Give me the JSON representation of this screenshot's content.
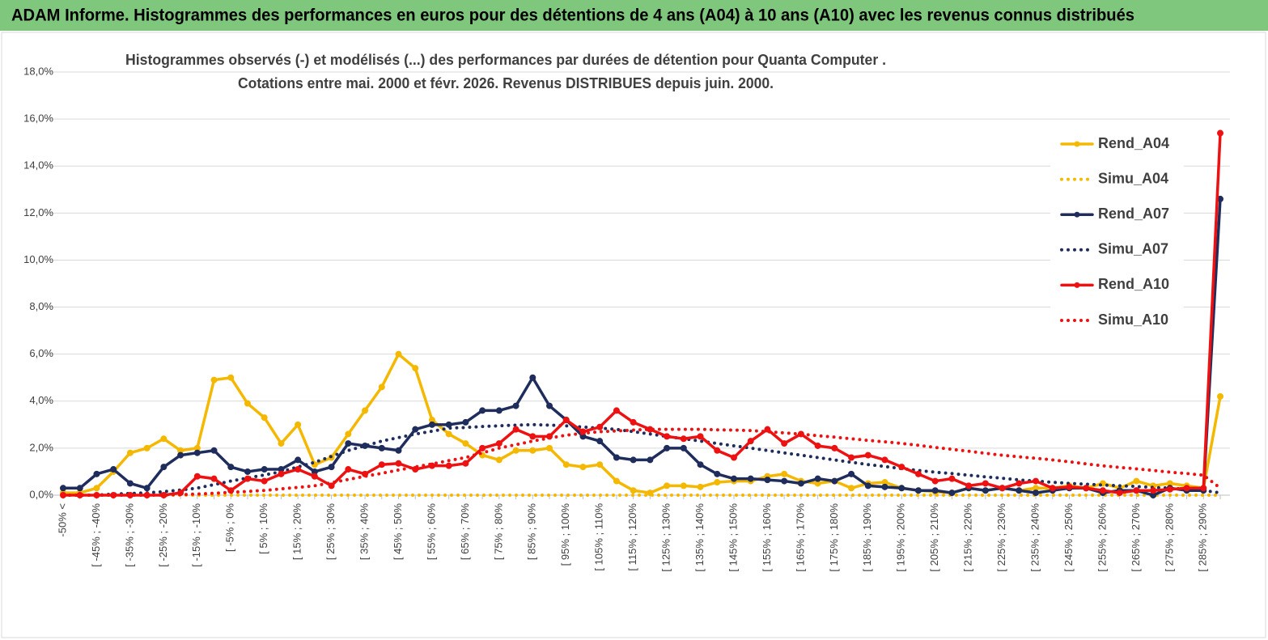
{
  "header": {
    "title": "ADAM Informe. Histogrammes des performances en euros pour des détentions de 4 ans (A04) à 10 ans (A10) avec les revenus connus distribués"
  },
  "chart_data": {
    "type": "line",
    "title": "Histogrammes observés (-) et modélisés (...) des performances par durées de détention pour Quanta Computer .",
    "subtitle": "Cotations entre mai. 2000 et févr. 2026. Revenus DISTRIBUES depuis juin. 2000.",
    "categories": [
      "-50% <",
      null,
      "[ -45% ; -40%",
      null,
      "[ -35% ; -30%",
      null,
      "[ -25% ; -20%",
      null,
      "[ -15% ; -10%",
      null,
      "[ -5% ; 0%",
      null,
      "[ 5% ; 10%",
      null,
      "[ 15% ; 20%",
      null,
      "[ 25% ; 30%",
      null,
      "[ 35% ; 40%",
      null,
      "[ 45% ; 50%",
      null,
      "[ 55% ; 60%",
      null,
      "[ 65% ; 70%",
      null,
      "[ 75% ; 80%",
      null,
      "[ 85% ; 90%",
      null,
      "[ 95% ; 100%",
      null,
      "[ 105% ; 110%",
      null,
      "[ 115% ; 120%",
      null,
      "[ 125% ; 130%",
      null,
      "[ 135% ; 140%",
      null,
      "[ 145% ; 150%",
      null,
      "[ 155% ; 160%",
      null,
      "[ 165% ; 170%",
      null,
      "[ 175% ; 180%",
      null,
      "[ 185% ; 190%",
      null,
      "[ 195% ; 200%",
      null,
      "[ 205% ; 210%",
      null,
      "[ 215% ; 220%",
      null,
      "[ 225% ; 230%",
      null,
      "[ 235% ; 240%",
      null,
      "[ 245% ; 250%",
      null,
      "[ 255% ; 260%",
      null,
      "[ 265% ; 270%",
      null,
      "[ 275% ; 280%",
      null,
      "[ 285% ; 290%",
      null
    ],
    "ylim": [
      0,
      18
    ],
    "yticks": [
      {
        "value": 0,
        "label": "0,0%"
      },
      {
        "value": 2,
        "label": "2,0%"
      },
      {
        "value": 4,
        "label": "4,0%"
      },
      {
        "value": 6,
        "label": "6,0%"
      },
      {
        "value": 8,
        "label": "8,0%"
      },
      {
        "value": 10,
        "label": "10,0%"
      },
      {
        "value": 12,
        "label": "12,0%"
      },
      {
        "value": 14,
        "label": "14,0%"
      },
      {
        "value": 16,
        "label": "16,0%"
      },
      {
        "value": 18,
        "label": "18,0%"
      }
    ],
    "grid": true,
    "legend": "right",
    "series": [
      {
        "name": "Rend_A04",
        "color": "#f5b800",
        "style": "solid",
        "values": [
          0.1,
          0.1,
          0.3,
          1.0,
          1.8,
          2.0,
          2.4,
          1.9,
          2.0,
          4.9,
          5.0,
          3.9,
          3.3,
          2.2,
          3.0,
          1.3,
          1.6,
          2.6,
          3.6,
          4.6,
          6.0,
          5.4,
          3.2,
          2.6,
          2.2,
          1.7,
          1.5,
          1.9,
          1.9,
          2.0,
          1.3,
          1.2,
          1.3,
          0.6,
          0.2,
          0.1,
          0.4,
          0.4,
          0.35,
          0.55,
          0.6,
          0.6,
          0.8,
          0.9,
          0.6,
          0.5,
          0.6,
          0.3,
          0.5,
          0.55,
          0.3,
          0.2,
          0.15,
          0.1,
          0.3,
          0.2,
          0.3,
          0.2,
          0.3,
          0.3,
          0.4,
          0.3,
          0.5,
          0.3,
          0.6,
          0.4,
          0.5,
          0.4,
          0.3,
          4.2
        ]
      },
      {
        "name": "Simu_A04",
        "color": "#f5b800",
        "style": "dotted",
        "values": [
          0,
          0,
          0,
          0,
          0,
          0,
          0,
          0,
          0,
          0,
          0,
          0,
          0,
          0,
          0,
          0,
          0,
          0,
          0,
          0,
          0,
          0,
          0,
          0,
          0,
          0,
          0,
          0,
          0,
          0,
          0,
          0,
          0,
          0,
          0,
          0,
          0,
          0,
          0,
          0,
          0,
          0,
          0,
          0,
          0,
          0,
          0,
          0,
          0,
          0,
          0,
          0,
          0,
          0,
          0,
          0,
          0,
          0,
          0,
          0,
          0,
          0,
          0,
          0,
          0,
          0,
          0,
          0,
          0,
          0
        ]
      },
      {
        "name": "Rend_A07",
        "color": "#1f2d5c",
        "style": "solid",
        "values": [
          0.3,
          0.3,
          0.9,
          1.1,
          0.5,
          0.3,
          1.2,
          1.7,
          1.8,
          1.9,
          1.2,
          1.0,
          1.1,
          1.1,
          1.5,
          1.0,
          1.2,
          2.2,
          2.1,
          2.0,
          1.9,
          2.8,
          3.0,
          3.0,
          3.1,
          3.6,
          3.6,
          3.8,
          5.0,
          3.8,
          3.2,
          2.5,
          2.3,
          1.6,
          1.5,
          1.5,
          2.0,
          2.0,
          1.3,
          0.9,
          0.7,
          0.7,
          0.65,
          0.6,
          0.5,
          0.7,
          0.6,
          0.9,
          0.4,
          0.35,
          0.3,
          0.2,
          0.2,
          0.1,
          0.3,
          0.2,
          0.3,
          0.2,
          0.1,
          0.2,
          0.3,
          0.3,
          0.1,
          0.2,
          0.2,
          0.0,
          0.3,
          0.2,
          0.2,
          12.6
        ]
      },
      {
        "name": "Simu_A07",
        "color": "#1f2d5c",
        "style": "dotted",
        "values": [
          0,
          0,
          0,
          0.05,
          0.07,
          0.1,
          0.15,
          0.22,
          0.3,
          0.45,
          0.6,
          0.73,
          0.86,
          1.0,
          1.2,
          1.4,
          1.65,
          1.9,
          2.1,
          2.3,
          2.45,
          2.6,
          2.72,
          2.85,
          2.88,
          2.92,
          2.95,
          2.98,
          3.0,
          2.98,
          2.95,
          2.9,
          2.85,
          2.8,
          2.7,
          2.6,
          2.5,
          2.4,
          2.3,
          2.2,
          2.1,
          2.0,
          1.9,
          1.8,
          1.7,
          1.6,
          1.5,
          1.4,
          1.3,
          1.22,
          1.13,
          1.05,
          0.98,
          0.92,
          0.85,
          0.78,
          0.72,
          0.65,
          0.6,
          0.55,
          0.5,
          0.47,
          0.43,
          0.4,
          0.37,
          0.33,
          0.3,
          0.25,
          0.2,
          0.1
        ]
      },
      {
        "name": "Rend_A10",
        "color": "#ee1111",
        "style": "solid",
        "values": [
          0,
          0,
          0,
          0,
          0,
          0,
          0,
          0.1,
          0.8,
          0.7,
          0.2,
          0.7,
          0.6,
          0.9,
          1.1,
          0.8,
          0.4,
          1.1,
          0.9,
          1.3,
          1.35,
          1.1,
          1.25,
          1.25,
          1.35,
          2.0,
          2.2,
          2.8,
          2.5,
          2.5,
          3.2,
          2.7,
          2.9,
          3.6,
          3.1,
          2.8,
          2.5,
          2.4,
          2.5,
          1.9,
          1.6,
          2.3,
          2.8,
          2.2,
          2.6,
          2.1,
          2.0,
          1.6,
          1.7,
          1.5,
          1.2,
          0.9,
          0.6,
          0.7,
          0.4,
          0.5,
          0.3,
          0.5,
          0.6,
          0.3,
          0.35,
          0.3,
          0.2,
          0.1,
          0.2,
          0.2,
          0.25,
          0.3,
          0.3,
          15.4
        ]
      },
      {
        "name": "Simu_A10",
        "color": "#ee1111",
        "style": "dotted",
        "values": [
          0,
          0,
          0,
          0,
          0,
          0,
          0.01,
          0.02,
          0.05,
          0.08,
          0.12,
          0.16,
          0.2,
          0.27,
          0.33,
          0.4,
          0.53,
          0.67,
          0.8,
          0.93,
          1.07,
          1.2,
          1.33,
          1.47,
          1.6,
          1.8,
          2.0,
          2.15,
          2.3,
          2.43,
          2.55,
          2.63,
          2.7,
          2.73,
          2.77,
          2.8,
          2.8,
          2.8,
          2.8,
          2.78,
          2.77,
          2.75,
          2.7,
          2.65,
          2.6,
          2.53,
          2.47,
          2.4,
          2.33,
          2.27,
          2.2,
          2.12,
          2.03,
          1.95,
          1.87,
          1.78,
          1.7,
          1.63,
          1.57,
          1.5,
          1.42,
          1.33,
          1.25,
          1.18,
          1.12,
          1.05,
          0.98,
          0.92,
          0.85,
          0.3
        ]
      }
    ]
  }
}
